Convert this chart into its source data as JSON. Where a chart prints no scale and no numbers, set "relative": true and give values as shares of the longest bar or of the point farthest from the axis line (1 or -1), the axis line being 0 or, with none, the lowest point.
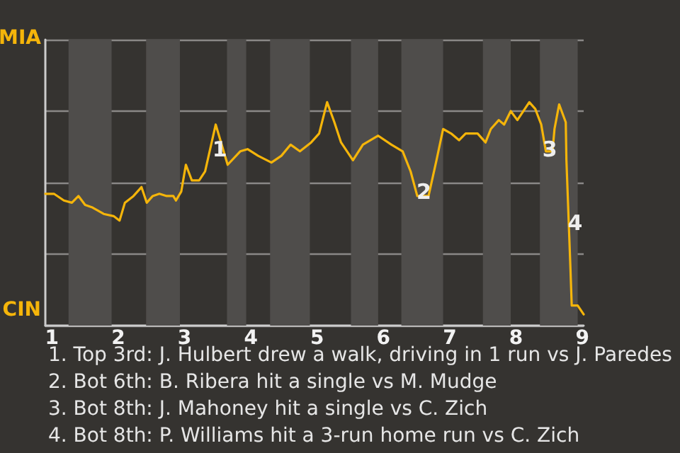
{
  "chart_data": {
    "type": "line",
    "x": [
      0.9,
      1.03,
      1.18,
      1.3,
      1.4,
      1.5,
      1.6,
      1.78,
      1.93,
      2.02,
      2.1,
      2.23,
      2.35,
      2.43,
      2.52,
      2.62,
      2.73,
      2.83,
      2.87,
      2.95,
      3.02,
      3.11,
      3.22,
      3.31,
      3.47,
      3.65,
      3.84,
      3.95,
      4.11,
      4.31,
      4.46,
      4.6,
      4.74,
      4.91,
      5.03,
      5.15,
      5.26,
      5.36,
      5.54,
      5.69,
      5.92,
      6.12,
      6.29,
      6.41,
      6.51,
      6.68,
      6.8,
      6.9,
      7.02,
      7.14,
      7.24,
      7.42,
      7.54,
      7.62,
      7.74,
      7.82,
      7.92,
      8.02,
      8.2,
      8.29,
      8.38,
      8.45,
      8.55,
      8.58,
      8.65,
      8.75,
      8.76,
      8.78,
      8.8,
      8.82,
      8.84,
      8.93,
      9.02
    ],
    "series": [
      {
        "color": "#f5b50a",
        "values": [
          0.59,
          0.59,
          0.56,
          0.55,
          0.58,
          0.54,
          0.53,
          0.5,
          0.49,
          0.47,
          0.55,
          0.58,
          0.62,
          0.55,
          0.58,
          0.59,
          0.58,
          0.58,
          0.56,
          0.6,
          0.72,
          0.65,
          0.65,
          0.69,
          0.9,
          0.72,
          0.78,
          0.79,
          0.76,
          0.73,
          0.76,
          0.81,
          0.78,
          0.82,
          0.86,
          1,
          0.91,
          0.82,
          0.74,
          0.81,
          0.85,
          0.81,
          0.78,
          0.69,
          0.58,
          0.58,
          0.74,
          0.88,
          0.86,
          0.83,
          0.86,
          0.86,
          0.82,
          0.88,
          0.92,
          0.9,
          0.96,
          0.92,
          1,
          0.97,
          0.9,
          0.78,
          0.78,
          0.88,
          0.99,
          0.91,
          0.74,
          0.58,
          0.42,
          0.26,
          0.09,
          0.09,
          0.05
        ]
      }
    ],
    "relative": true,
    "xlim": [
      0.9,
      9.02
    ],
    "xticks": [
      1,
      2,
      3,
      4,
      5,
      6,
      7,
      8,
      9
    ],
    "grid": "y",
    "bands": [
      {
        "axis": "x",
        "from": 1.25,
        "to": 1.9,
        "color": "#4f4d4b"
      },
      {
        "axis": "x",
        "from": 2.42,
        "to": 2.93,
        "color": "#4f4d4b"
      },
      {
        "axis": "x",
        "from": 3.64,
        "to": 3.93,
        "color": "#4f4d4b"
      },
      {
        "axis": "x",
        "from": 4.29,
        "to": 4.89,
        "color": "#4f4d4b"
      },
      {
        "axis": "x",
        "from": 5.51,
        "to": 5.92,
        "color": "#4f4d4b"
      },
      {
        "axis": "x",
        "from": 6.27,
        "to": 6.9,
        "color": "#4f4d4b"
      },
      {
        "axis": "x",
        "from": 7.5,
        "to": 7.92,
        "color": "#4f4d4b"
      },
      {
        "axis": "x",
        "from": 8.36,
        "to": 8.93,
        "color": "#4f4d4b"
      }
    ],
    "annotations": [
      "MIA",
      "CIN",
      {
        "text": "1",
        "x": 3.53,
        "y": 0.79
      },
      {
        "text": "2",
        "x": 6.61,
        "y": 0.6
      },
      {
        "text": "3",
        "x": 8.51,
        "y": 0.79
      },
      {
        "text": "4",
        "x": 8.89,
        "y": 0.46
      },
      "1. Top 3rd: J. Hulbert drew a walk, driving in 1 run vs J. Paredes",
      "2. Bot 6th: B. Ribera hit a single vs M. Mudge",
      "3. Bot 8th: J. Mahoney hit a single vs C. Zich",
      "4. Bot 8th: P. Williams hit a 3-run home run vs C. Zich"
    ]
  }
}
